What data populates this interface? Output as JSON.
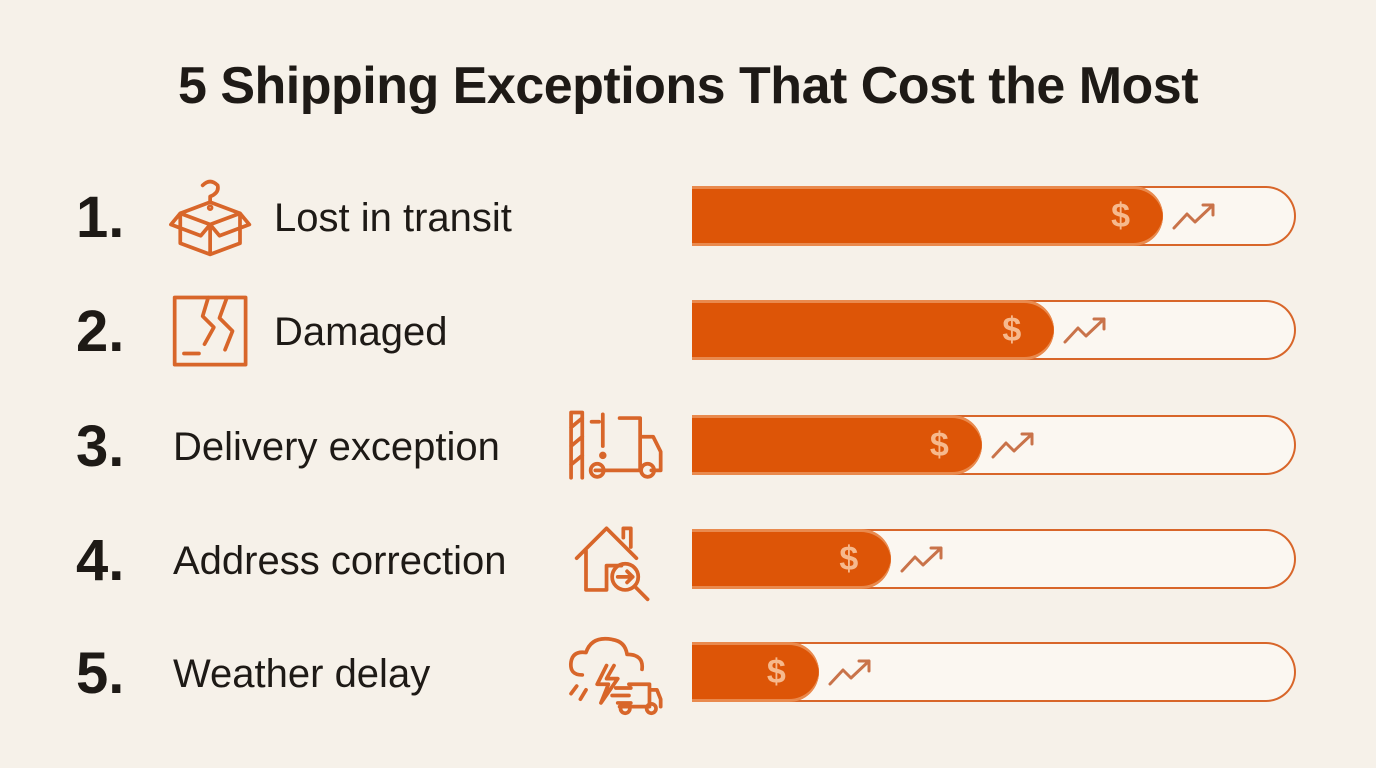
{
  "chart_data": {
    "type": "bar",
    "title": "5 Shipping Exceptions That Cost the Most",
    "categories": [
      "Lost in transit",
      "Damaged",
      "Delivery exception",
      "Address correction",
      "Weather delay"
    ],
    "ranks": [
      "1.",
      "2.",
      "3.",
      "4.",
      "5."
    ],
    "values": [
      78,
      60,
      48,
      33,
      21
    ],
    "value_unit": "relative cost (% of bar track)",
    "xlim": [
      0,
      100
    ],
    "icons": [
      "open-box-question-icon",
      "torn-package-icon",
      "truck-barrier-alert-icon",
      "house-search-icon",
      "storm-truck-icon"
    ],
    "bar_marker": "$",
    "colors": {
      "fill": "#dd5507",
      "outline": "#d8662a",
      "background": "#f6f1e9",
      "text": "#1e1a16"
    }
  }
}
